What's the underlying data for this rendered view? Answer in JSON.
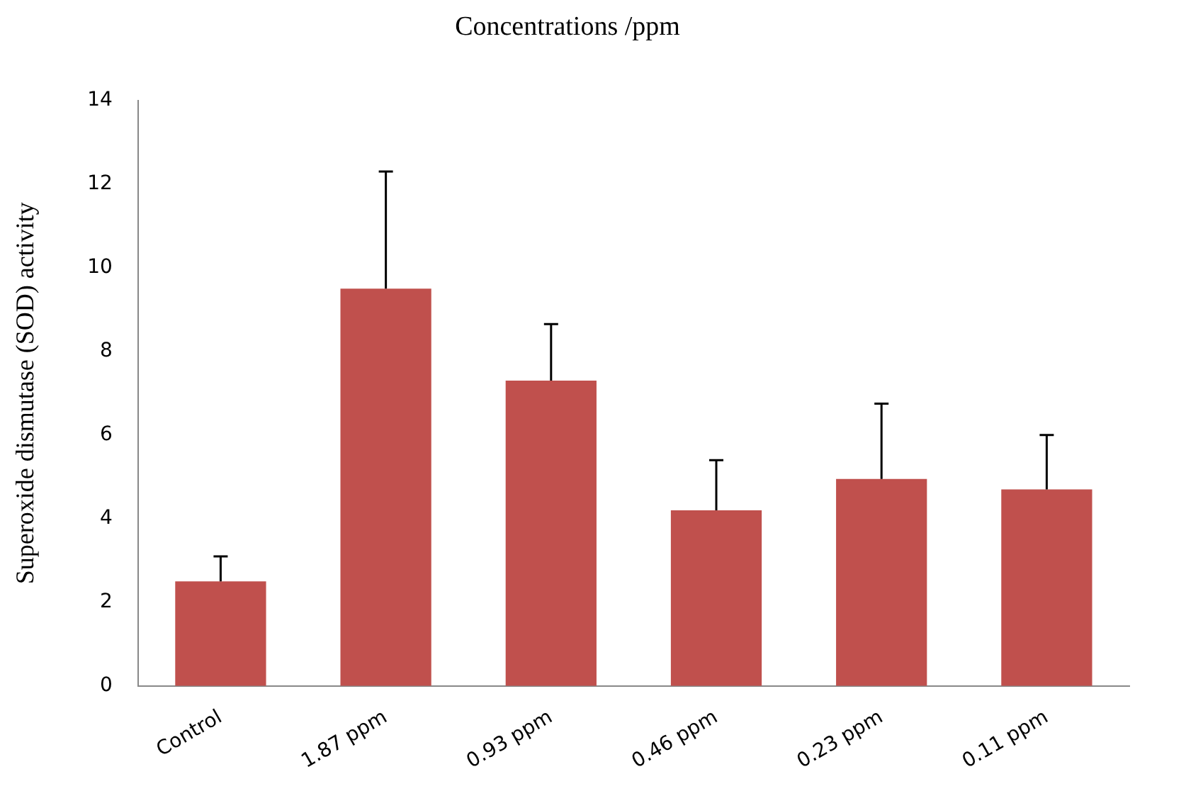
{
  "chart_data": {
    "type": "bar",
    "title": "Concentrations /ppm",
    "ylabel": "Superoxide dismutase (SOD) activity",
    "categories": [
      "Control",
      "1.87 ppm",
      "0.93 ppm",
      "0.46 ppm",
      "0.23 ppm",
      "0.11 ppm"
    ],
    "values": [
      2.5,
      9.5,
      7.3,
      4.2,
      4.95,
      4.7
    ],
    "errors": [
      [
        2.5,
        3.1
      ],
      [
        9.5,
        12.3
      ],
      [
        7.3,
        8.65
      ],
      [
        4.2,
        5.4
      ],
      [
        4.95,
        6.75
      ],
      [
        4.7,
        6.0
      ]
    ],
    "color": "#c0504d",
    "ylim": [
      0,
      14
    ],
    "yticks": [
      0,
      2,
      4,
      6,
      8,
      10,
      12,
      14
    ],
    "grid": false,
    "legend": false
  }
}
